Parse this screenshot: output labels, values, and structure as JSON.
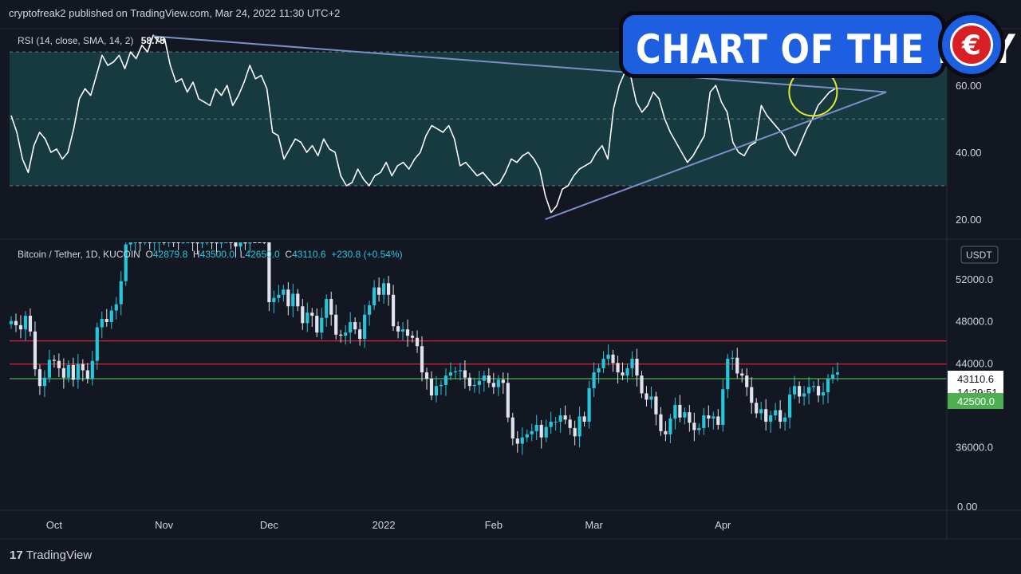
{
  "header": {
    "published": "cryptofreak2 published on TradingView.com, Mar 24, 2022 11:30 UTC+2"
  },
  "badge": {
    "title": "CHART OF THE DAY",
    "logo_glyph": "€",
    "logo_icon": "crypto-news-logo-icon"
  },
  "footer": {
    "brand": "TradingView",
    "logo_glyph": "17"
  },
  "colors": {
    "background": "#131722",
    "rsi_band": "#163a40",
    "rsi_line": "#ffffff",
    "up_candle": "#26c6da",
    "down_candle": "#e0e3eb",
    "trendline": "#7b8fc6",
    "highlight_circle": "#e6e634",
    "resistance": "#d9253a",
    "support": "#4caf50",
    "badge_blue": "#1d5fe0"
  },
  "chart_data": [
    {
      "type": "line",
      "name": "rsi-panel",
      "legend": {
        "label": "RSI (14, close, SMA, 14, 2)",
        "value": "58.75"
      },
      "ylim": [
        15,
        76
      ],
      "y_ticks": [
        {
          "value": 20,
          "label": "20.00"
        },
        {
          "value": 40,
          "label": "40.00"
        },
        {
          "value": 60,
          "label": "60.00"
        }
      ],
      "bands": {
        "upper": 70,
        "middle": 50,
        "lower": 30
      },
      "grid": false,
      "series": [
        {
          "values": [
            51,
            46,
            38,
            34,
            42,
            46,
            44,
            40,
            41,
            38,
            40,
            47,
            56,
            59,
            57,
            63,
            69,
            66,
            67,
            69,
            65,
            70,
            68,
            72,
            70,
            75,
            73,
            74,
            66,
            61,
            62,
            58,
            61,
            56,
            55,
            54,
            59,
            57,
            60,
            54,
            57,
            61,
            66,
            62,
            63,
            59,
            46,
            45,
            38,
            41,
            44,
            43,
            40,
            42,
            39,
            44,
            41,
            40,
            33,
            30,
            31,
            35,
            32,
            30,
            33,
            34,
            37,
            33,
            36,
            37,
            35,
            38,
            40,
            45,
            48,
            47,
            46,
            48,
            44,
            36,
            37,
            35,
            33,
            34,
            32,
            30,
            31,
            34,
            38,
            37,
            39,
            40,
            38,
            35,
            27,
            22,
            24,
            29,
            30,
            33,
            35,
            36,
            37,
            40,
            42,
            38,
            53,
            60,
            64,
            63,
            55,
            52,
            54,
            58,
            56,
            50,
            46,
            43,
            40,
            37,
            39,
            42,
            45,
            58,
            60,
            55,
            52,
            43,
            40,
            39,
            42,
            43,
            54,
            51,
            49,
            47,
            45,
            41,
            39,
            43,
            47,
            50,
            54,
            56,
            58,
            59
          ]
        }
      ],
      "annotations": [
        {
          "type": "trendline",
          "from": [
            25,
            74.7
          ],
          "to": [
            154,
            58
          ]
        },
        {
          "type": "trendline",
          "from": [
            94,
            20
          ],
          "to": [
            154,
            58
          ]
        },
        {
          "type": "circle",
          "center_index": 140,
          "center_value": 59
        }
      ]
    },
    {
      "type": "candlestick",
      "name": "price-panel",
      "legend": {
        "symbol": "Bitcoin / Tether, 1D, KUCOIN",
        "o_label": "O",
        "o": "42879.8",
        "h_label": "H",
        "h": "43500.0",
        "l_label": "L",
        "l": "42650.0",
        "c_label": "C",
        "c": "43110.6",
        "change": "+230.8 (+0.54%)"
      },
      "currency": "USDT",
      "ylim": [
        33000,
        55500
      ],
      "y_ticks": [
        {
          "value": 36000,
          "label": "36000.0"
        },
        {
          "value": 44000,
          "label": "44000.0"
        },
        {
          "value": 48000,
          "label": "48000.0"
        },
        {
          "value": 52000,
          "label": "52000.0"
        }
      ],
      "last_price": {
        "value": 43110.6,
        "label": "43110.6",
        "countdown": "14:29:51"
      },
      "support": {
        "value": 42500,
        "label": "42500.0"
      },
      "resistance": [
        46100,
        43900
      ],
      "volume_axis_label": "0.00",
      "x_ticks": [
        {
          "index": 9,
          "label": "Oct"
        },
        {
          "index": 32,
          "label": "Nov"
        },
        {
          "index": 54,
          "label": "Dec"
        },
        {
          "index": 78,
          "label": "2022"
        },
        {
          "index": 101,
          "label": "Feb"
        },
        {
          "index": 122,
          "label": "Mar"
        },
        {
          "index": 149,
          "label": "Apr"
        }
      ],
      "closes": [
        48000,
        47600,
        47200,
        48500,
        47000,
        43400,
        41800,
        42600,
        44300,
        44200,
        43500,
        42600,
        43800,
        42400,
        43900,
        43300,
        42500,
        44200,
        47400,
        48200,
        47900,
        49000,
        49600,
        51800,
        55300,
        55500,
        56200,
        55700,
        56500,
        55500,
        55600,
        56200,
        55700,
        56600,
        55900,
        55800,
        56500,
        56700,
        55500,
        55400,
        55900,
        56200,
        55700,
        55400,
        56200,
        56800,
        55700,
        55100,
        55600,
        55400,
        58200,
        57400,
        56700,
        56000,
        49800,
        50200,
        50500,
        51000,
        49400,
        50600,
        49400,
        47800,
        48800,
        48500,
        46900,
        48300,
        50100,
        48600,
        46700,
        46600,
        46900,
        47900,
        47200,
        46300,
        48600,
        49500,
        51200,
        50500,
        51600,
        50500,
        47500,
        47000,
        47200,
        46600,
        46400,
        45600,
        43100,
        42500,
        40900,
        41800,
        41900,
        42800,
        43100,
        43200,
        43300,
        42600,
        41800,
        41900,
        42300,
        42800,
        42100,
        41700,
        42400,
        42100,
        38800,
        36800,
        36300,
        36900,
        37200,
        37500,
        38100,
        36900,
        37900,
        38400,
        38400,
        39000,
        38600,
        37800,
        37000,
        38900,
        38400,
        41600,
        43100,
        43500,
        44400,
        44800,
        44000,
        43100,
        42800,
        43500,
        44400,
        42800,
        41100,
        40500,
        40800,
        39100,
        37500,
        37200,
        38700,
        40000,
        38800,
        39300,
        38300,
        37600,
        37800,
        39000,
        38700,
        38900,
        38100,
        41500,
        44400,
        44500,
        43000,
        42800,
        41700,
        40200,
        39200,
        39600,
        38400,
        39000,
        39500,
        38400,
        38800,
        41000,
        41800,
        40800,
        41100,
        41700,
        41800,
        40900,
        41200,
        42500,
        42900,
        43100
      ]
    }
  ]
}
